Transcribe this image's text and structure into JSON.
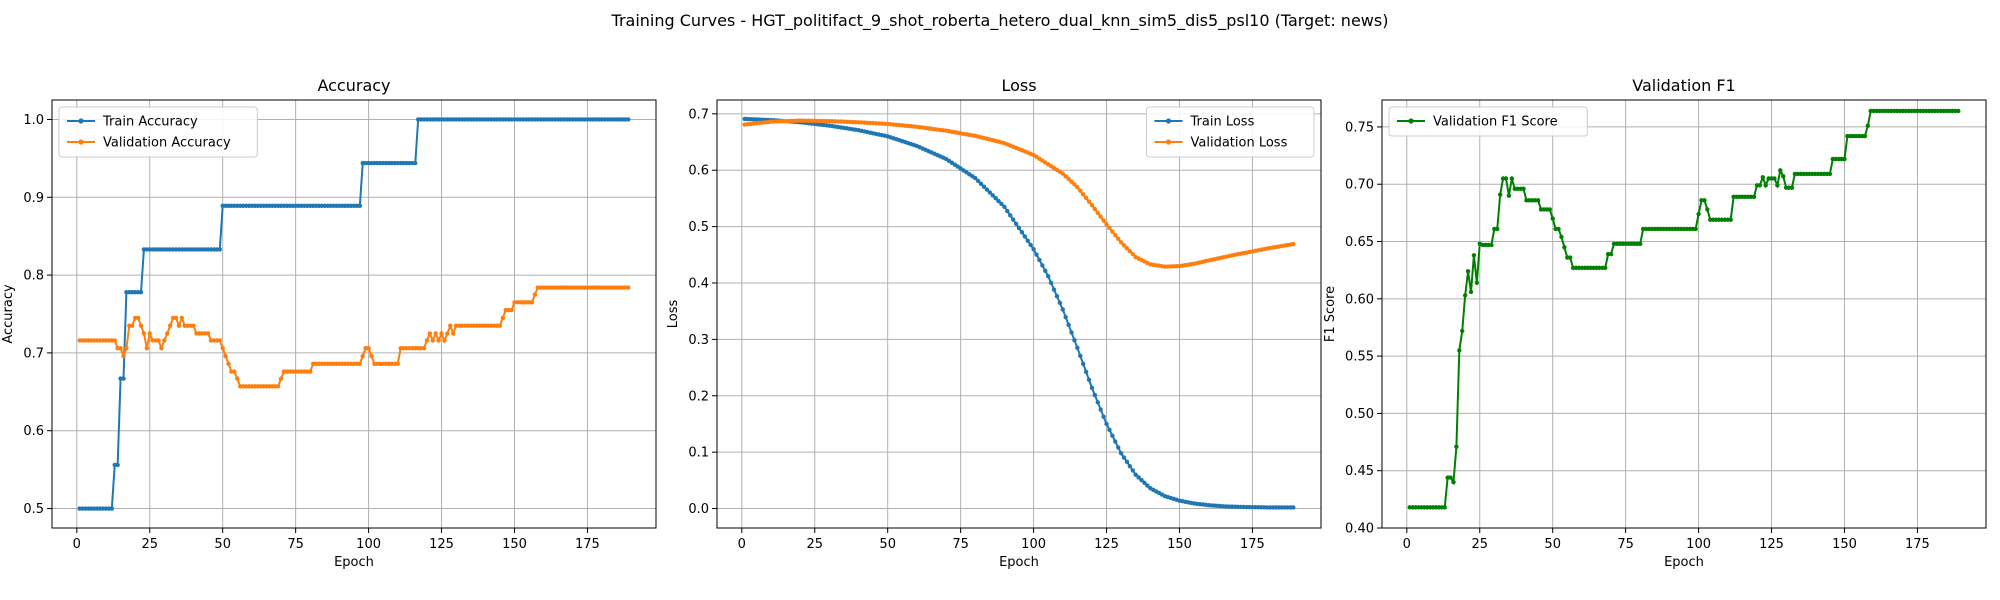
{
  "figure": {
    "suptitle": "Training Curves - HGT_politifact_9_shot_roberta_hetero_dual_knn_sim5_dis5_psl10 (Target: news)"
  },
  "colors": {
    "blue": "#1f77b4",
    "orange": "#ff7f0e",
    "green": "#008000",
    "grid": "#b0b0b0"
  },
  "chart_data": [
    {
      "type": "line",
      "title": "Accuracy",
      "xlabel": "Epoch",
      "ylabel": "Accuracy",
      "xlim": [
        -8.5,
        198.5
      ],
      "ylim": [
        0.475,
        1.025
      ],
      "xticks": [
        0,
        25,
        50,
        75,
        100,
        125,
        150,
        175
      ],
      "yticks": [
        0.5,
        0.6,
        0.7,
        0.8,
        0.9,
        1.0
      ],
      "ytick_decimals": 1,
      "grid": true,
      "legend_position": "upper left",
      "series": [
        {
          "name": "Train Accuracy",
          "color": "#1f77b4",
          "segments": [
            [
              1,
              12,
              0.5
            ],
            [
              13,
              14,
              0.556
            ],
            [
              15,
              16,
              0.667
            ],
            [
              17,
              22,
              0.778
            ],
            [
              23,
              49,
              0.833
            ],
            [
              50,
              97,
              0.889
            ],
            [
              98,
              116,
              0.944
            ],
            [
              117,
              189,
              1.0
            ]
          ]
        },
        {
          "name": "Validation Accuracy",
          "color": "#ff7f0e",
          "segments": [
            [
              1,
              13,
              0.716
            ],
            [
              14,
              14,
              0.706
            ],
            [
              15,
              15,
              0.706
            ],
            [
              16,
              16,
              0.696
            ],
            [
              17,
              17,
              0.706
            ],
            [
              18,
              18,
              0.735
            ],
            [
              19,
              19,
              0.735
            ],
            [
              20,
              20,
              0.745
            ],
            [
              21,
              21,
              0.745
            ],
            [
              22,
              22,
              0.735
            ],
            [
              23,
              23,
              0.725
            ],
            [
              24,
              24,
              0.706
            ],
            [
              25,
              25,
              0.725
            ],
            [
              26,
              28,
              0.716
            ],
            [
              29,
              29,
              0.706
            ],
            [
              30,
              30,
              0.716
            ],
            [
              31,
              31,
              0.725
            ],
            [
              32,
              32,
              0.735
            ],
            [
              33,
              33,
              0.745
            ],
            [
              34,
              34,
              0.745
            ],
            [
              35,
              35,
              0.735
            ],
            [
              36,
              36,
              0.745
            ],
            [
              37,
              40,
              0.735
            ],
            [
              41,
              45,
              0.725
            ],
            [
              46,
              49,
              0.716
            ],
            [
              50,
              50,
              0.706
            ],
            [
              51,
              51,
              0.696
            ],
            [
              52,
              52,
              0.686
            ],
            [
              53,
              54,
              0.676
            ],
            [
              55,
              55,
              0.667
            ],
            [
              56,
              69,
              0.657
            ],
            [
              70,
              70,
              0.667
            ],
            [
              71,
              80,
              0.676
            ],
            [
              81,
              97,
              0.686
            ],
            [
              98,
              98,
              0.696
            ],
            [
              99,
              100,
              0.706
            ],
            [
              101,
              101,
              0.696
            ],
            [
              102,
              110,
              0.686
            ],
            [
              111,
              119,
              0.706
            ],
            [
              120,
              120,
              0.716
            ],
            [
              121,
              121,
              0.725
            ],
            [
              122,
              122,
              0.716
            ],
            [
              123,
              123,
              0.725
            ],
            [
              124,
              124,
              0.716
            ],
            [
              125,
              125,
              0.725
            ],
            [
              126,
              126,
              0.716
            ],
            [
              127,
              127,
              0.725
            ],
            [
              128,
              128,
              0.735
            ],
            [
              129,
              129,
              0.725
            ],
            [
              130,
              130,
              0.735
            ],
            [
              131,
              145,
              0.735
            ],
            [
              146,
              146,
              0.745
            ],
            [
              147,
              147,
              0.755
            ],
            [
              148,
              149,
              0.755
            ],
            [
              150,
              155,
              0.765
            ],
            [
              156,
              156,
              0.765
            ],
            [
              157,
              157,
              0.775
            ],
            [
              158,
              189,
              0.784
            ]
          ]
        }
      ]
    },
    {
      "type": "line",
      "title": "Loss",
      "xlabel": "Epoch",
      "ylabel": "Loss",
      "xlim": [
        -8.5,
        198.5
      ],
      "ylim": [
        -0.0345,
        0.7245
      ],
      "xticks": [
        0,
        25,
        50,
        75,
        100,
        125,
        150,
        175
      ],
      "yticks": [
        0.0,
        0.1,
        0.2,
        0.3,
        0.4,
        0.5,
        0.6,
        0.7
      ],
      "ytick_decimals": 1,
      "grid": true,
      "legend_position": "upper right",
      "series": [
        {
          "name": "Train Loss",
          "color": "#1f77b4",
          "points": [
            [
              1,
              0.691
            ],
            [
              10,
              0.689
            ],
            [
              20,
              0.685
            ],
            [
              30,
              0.679
            ],
            [
              40,
              0.671
            ],
            [
              50,
              0.66
            ],
            [
              60,
              0.643
            ],
            [
              70,
              0.62
            ],
            [
              80,
              0.586
            ],
            [
              90,
              0.535
            ],
            [
              100,
              0.46
            ],
            [
              105,
              0.412
            ],
            [
              110,
              0.353
            ],
            [
              115,
              0.285
            ],
            [
              120,
              0.214
            ],
            [
              125,
              0.15
            ],
            [
              130,
              0.098
            ],
            [
              135,
              0.06
            ],
            [
              140,
              0.036
            ],
            [
              145,
              0.022
            ],
            [
              150,
              0.014
            ],
            [
              155,
              0.009
            ],
            [
              160,
              0.006
            ],
            [
              165,
              0.004
            ],
            [
              170,
              0.003
            ],
            [
              180,
              0.002
            ],
            [
              189,
              0.002
            ]
          ]
        },
        {
          "name": "Validation Loss",
          "color": "#ff7f0e",
          "points": [
            [
              1,
              0.681
            ],
            [
              10,
              0.686
            ],
            [
              20,
              0.688
            ],
            [
              30,
              0.687
            ],
            [
              40,
              0.685
            ],
            [
              50,
              0.682
            ],
            [
              60,
              0.677
            ],
            [
              70,
              0.67
            ],
            [
              80,
              0.661
            ],
            [
              90,
              0.648
            ],
            [
              100,
              0.627
            ],
            [
              110,
              0.594
            ],
            [
              115,
              0.57
            ],
            [
              120,
              0.538
            ],
            [
              125,
              0.504
            ],
            [
              130,
              0.472
            ],
            [
              135,
              0.446
            ],
            [
              140,
              0.433
            ],
            [
              145,
              0.429
            ],
            [
              150,
              0.43
            ],
            [
              155,
              0.434
            ],
            [
              160,
              0.44
            ],
            [
              170,
              0.451
            ],
            [
              180,
              0.461
            ],
            [
              189,
              0.469
            ]
          ]
        }
      ]
    },
    {
      "type": "line",
      "title": "Validation F1",
      "xlabel": "Epoch",
      "ylabel": "F1 Score",
      "xlim": [
        -8.5,
        198.5
      ],
      "ylim": [
        0.4,
        0.7735
      ],
      "xticks": [
        0,
        25,
        50,
        75,
        100,
        125,
        150,
        175
      ],
      "yticks": [
        0.4,
        0.45,
        0.5,
        0.55,
        0.6,
        0.65,
        0.7,
        0.75
      ],
      "ytick_decimals": 2,
      "grid": true,
      "legend_position": "upper left",
      "series": [
        {
          "name": "Validation F1 Score",
          "color": "#008000",
          "segments": [
            [
              1,
              13,
              0.418
            ],
            [
              14,
              15,
              0.444
            ],
            [
              16,
              16,
              0.44
            ],
            [
              17,
              17,
              0.471
            ],
            [
              18,
              18,
              0.555
            ],
            [
              19,
              19,
              0.572
            ],
            [
              20,
              20,
              0.603
            ],
            [
              21,
              21,
              0.624
            ],
            [
              22,
              22,
              0.606
            ],
            [
              23,
              23,
              0.638
            ],
            [
              24,
              24,
              0.614
            ],
            [
              25,
              25,
              0.648
            ],
            [
              26,
              29,
              0.647
            ],
            [
              30,
              31,
              0.661
            ],
            [
              32,
              32,
              0.691
            ],
            [
              33,
              34,
              0.705
            ],
            [
              35,
              35,
              0.69
            ],
            [
              36,
              36,
              0.705
            ],
            [
              37,
              40,
              0.696
            ],
            [
              41,
              45,
              0.686
            ],
            [
              46,
              49,
              0.678
            ],
            [
              50,
              50,
              0.67
            ],
            [
              51,
              52,
              0.661
            ],
            [
              53,
              53,
              0.654
            ],
            [
              54,
              54,
              0.645
            ],
            [
              55,
              56,
              0.636
            ],
            [
              57,
              68,
              0.627
            ],
            [
              69,
              70,
              0.639
            ],
            [
              71,
              80,
              0.648
            ],
            [
              81,
              99,
              0.661
            ],
            [
              100,
              100,
              0.674
            ],
            [
              101,
              102,
              0.686
            ],
            [
              103,
              103,
              0.678
            ],
            [
              104,
              111,
              0.669
            ],
            [
              112,
              119,
              0.689
            ],
            [
              120,
              121,
              0.699
            ],
            [
              122,
              122,
              0.706
            ],
            [
              123,
              123,
              0.699
            ],
            [
              124,
              124,
              0.705
            ],
            [
              125,
              126,
              0.705
            ],
            [
              127,
              127,
              0.699
            ],
            [
              128,
              128,
              0.712
            ],
            [
              129,
              129,
              0.707
            ],
            [
              130,
              132,
              0.697
            ],
            [
              133,
              145,
              0.709
            ],
            [
              146,
              150,
              0.722
            ],
            [
              151,
              157,
              0.742
            ],
            [
              158,
              158,
              0.751
            ],
            [
              159,
              189,
              0.764
            ]
          ]
        }
      ]
    }
  ]
}
